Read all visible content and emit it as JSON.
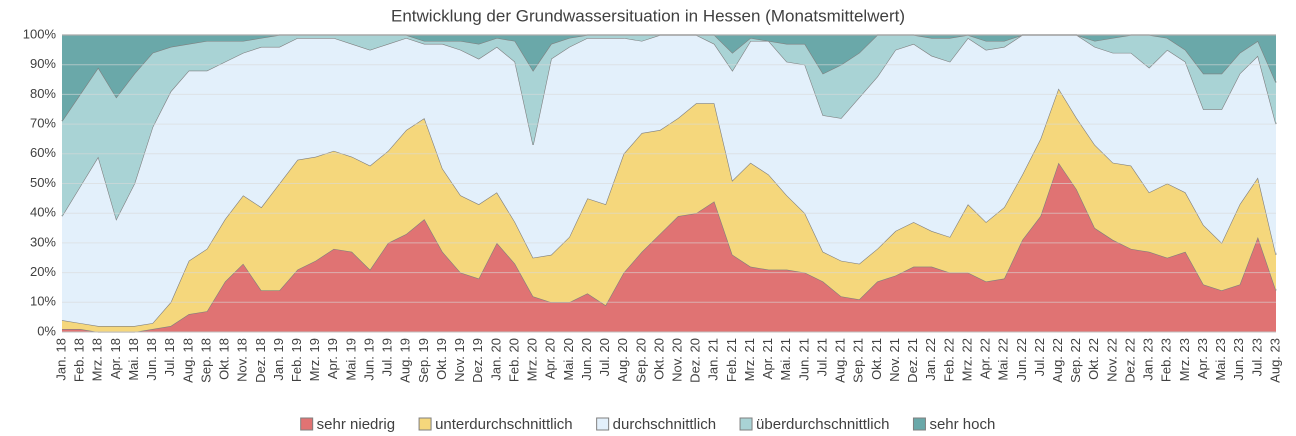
{
  "chart_data": {
    "type": "stacked_area_100",
    "title": "Entwicklung der Grundwassersituation in Hessen (Monatsmittelwert)",
    "categories": [
      "Jan. 18",
      "Feb. 18",
      "Mrz. 18",
      "Apr. 18",
      "Mai. 18",
      "Jun. 18",
      "Jul. 18",
      "Aug. 18",
      "Sep. 18",
      "Okt. 18",
      "Nov. 18",
      "Dez. 18",
      "Jan. 19",
      "Feb. 19",
      "Mrz. 19",
      "Apr. 19",
      "Mai. 19",
      "Jun. 19",
      "Jul. 19",
      "Aug. 19",
      "Sep. 19",
      "Okt. 19",
      "Nov. 19",
      "Dez. 19",
      "Jan. 20",
      "Feb. 20",
      "Mrz. 20",
      "Apr. 20",
      "Mai. 20",
      "Jun. 20",
      "Jul. 20",
      "Aug. 20",
      "Sep. 20",
      "Okt. 20",
      "Nov. 20",
      "Dez. 20",
      "Jan. 21",
      "Feb. 21",
      "Mrz. 21",
      "Apr. 21",
      "Mai. 21",
      "Jun. 21",
      "Jul. 21",
      "Aug. 21",
      "Sep. 21",
      "Okt. 21",
      "Nov. 21",
      "Dez. 21",
      "Jan. 22",
      "Feb. 22",
      "Mrz. 22",
      "Apr. 22",
      "Mai. 22",
      "Jun. 22",
      "Jul. 22",
      "Aug. 22",
      "Sep. 22",
      "Okt. 22",
      "Nov. 22",
      "Dez. 22",
      "Jan. 23",
      "Feb. 23",
      "Mrz. 23",
      "Apr. 23",
      "Mai. 23",
      "Jun. 23",
      "Jul. 23",
      "Aug. 23"
    ],
    "series": [
      {
        "name": "sehr niedrig",
        "color": "#e07373",
        "values": [
          1,
          1,
          0,
          0,
          0,
          1,
          2,
          6,
          7,
          17,
          23,
          14,
          14,
          21,
          24,
          28,
          27,
          21,
          30,
          33,
          38,
          27,
          20,
          18,
          30,
          23,
          12,
          10,
          10,
          13,
          9,
          20,
          27,
          33,
          39,
          40,
          44,
          26,
          22,
          21,
          21,
          20,
          17,
          12,
          11,
          17,
          19,
          22,
          22,
          20,
          20,
          17,
          18,
          31,
          39,
          57,
          48,
          35,
          31,
          28,
          27,
          25,
          27,
          16,
          14,
          16,
          32,
          14
        ]
      },
      {
        "name": "unterdurchschnittlich",
        "color": "#f5d77c",
        "values": [
          3,
          2,
          2,
          2,
          2,
          2,
          8,
          18,
          21,
          21,
          23,
          28,
          36,
          37,
          35,
          33,
          32,
          35,
          31,
          35,
          34,
          28,
          26,
          25,
          17,
          14,
          13,
          16,
          22,
          32,
          34,
          40,
          40,
          35,
          33,
          37,
          33,
          25,
          35,
          32,
          25,
          20,
          10,
          12,
          12,
          11,
          15,
          15,
          12,
          12,
          23,
          20,
          24,
          22,
          26,
          25,
          24,
          28,
          26,
          28,
          20,
          25,
          20,
          20,
          16,
          27,
          20,
          12
        ]
      },
      {
        "name": "durchschnittlich",
        "color": "#e3f0fb",
        "values": [
          35,
          46,
          57,
          36,
          48,
          66,
          71,
          64,
          60,
          53,
          48,
          54,
          46,
          41,
          40,
          38,
          38,
          39,
          36,
          31,
          25,
          42,
          49,
          49,
          49,
          54,
          38,
          66,
          64,
          54,
          56,
          39,
          31,
          32,
          28,
          23,
          20,
          37,
          41,
          45,
          45,
          50,
          46,
          48,
          56,
          58,
          61,
          60,
          59,
          59,
          56,
          58,
          54,
          47,
          35,
          18,
          28,
          33,
          37,
          38,
          42,
          45,
          44,
          39,
          45,
          44,
          41,
          44
        ]
      },
      {
        "name": "überdurchschnittlich",
        "color": "#a9d3d5",
        "values": [
          32,
          31,
          30,
          41,
          37,
          25,
          15,
          9,
          10,
          7,
          4,
          3,
          4,
          1,
          1,
          1,
          3,
          5,
          3,
          1,
          1,
          1,
          3,
          5,
          3,
          7,
          25,
          5,
          3,
          1,
          1,
          1,
          2,
          0,
          0,
          0,
          3,
          6,
          1,
          0,
          6,
          7,
          14,
          18,
          15,
          14,
          5,
          3,
          6,
          8,
          1,
          3,
          2,
          0,
          0,
          0,
          0,
          2,
          5,
          6,
          11,
          4,
          4,
          12,
          12,
          7,
          5,
          14
        ]
      },
      {
        "name": "sehr hoch",
        "color": "#6aa8a9",
        "values": [
          29,
          20,
          11,
          21,
          13,
          6,
          4,
          3,
          2,
          2,
          2,
          1,
          0,
          0,
          0,
          0,
          0,
          0,
          0,
          0,
          2,
          2,
          2,
          3,
          1,
          2,
          12,
          3,
          1,
          0,
          0,
          0,
          0,
          0,
          0,
          0,
          0,
          6,
          1,
          2,
          3,
          3,
          13,
          10,
          6,
          0,
          0,
          0,
          1,
          1,
          0,
          2,
          2,
          0,
          0,
          0,
          0,
          2,
          1,
          0,
          0,
          1,
          5,
          13,
          13,
          6,
          2,
          16
        ]
      }
    ],
    "ylim": [
      0,
      100
    ],
    "yticks": [
      {
        "value": 0,
        "label": "0%"
      },
      {
        "value": 10,
        "label": "10%"
      },
      {
        "value": 20,
        "label": "20%"
      },
      {
        "value": 30,
        "label": "30%"
      },
      {
        "value": 40,
        "label": "40%"
      },
      {
        "value": 50,
        "label": "50%"
      },
      {
        "value": 60,
        "label": "60%"
      },
      {
        "value": 70,
        "label": "70%"
      },
      {
        "value": 80,
        "label": "80%"
      },
      {
        "value": 90,
        "label": "90%"
      },
      {
        "value": 100,
        "label": "100%"
      }
    ],
    "grid": true,
    "legend": "bottom"
  }
}
